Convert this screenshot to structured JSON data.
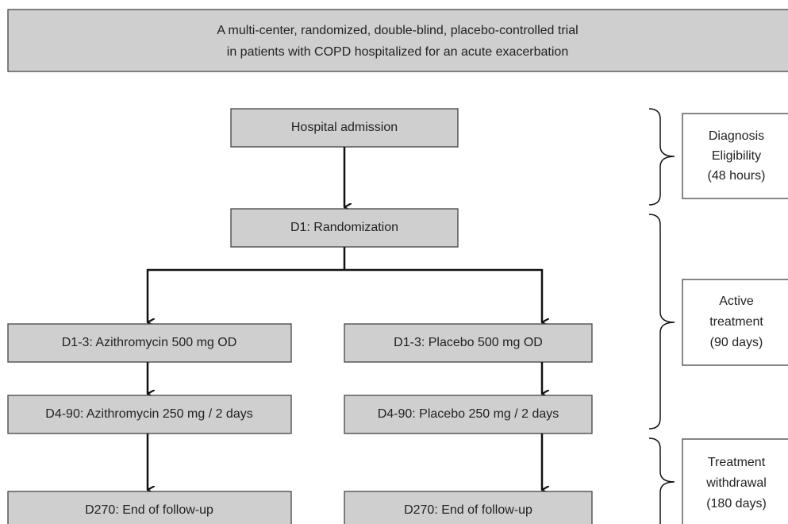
{
  "header": {
    "lines": [
      "A multi-center, randomized, double-blind, placebo-controlled trial",
      "in patients with COPD hospitalized for an acute exacerbation"
    ]
  },
  "nodes": [
    {
      "label": "Hospital admission"
    },
    {
      "label": "D1: Randomization"
    },
    {
      "label": "D1-3: Azithromycin 500 mg OD"
    },
    {
      "label": "D1-3: Placebo 500 mg OD"
    },
    {
      "label": "D4-90: Azithromycin 250 mg / 2 days"
    },
    {
      "label": "D4-90: Placebo 250 mg / 2 days"
    },
    {
      "label": "D270: End of follow-up"
    },
    {
      "label": "D270: End of follow-up"
    }
  ],
  "phases": [
    {
      "lines": [
        "Diagnosis",
        "Eligibility",
        "(48 hours)"
      ]
    },
    {
      "lines": [
        "Active",
        "treatment",
        "(90 days)"
      ]
    },
    {
      "lines": [
        "Treatment",
        "withdrawal",
        "(180 days)"
      ]
    }
  ]
}
